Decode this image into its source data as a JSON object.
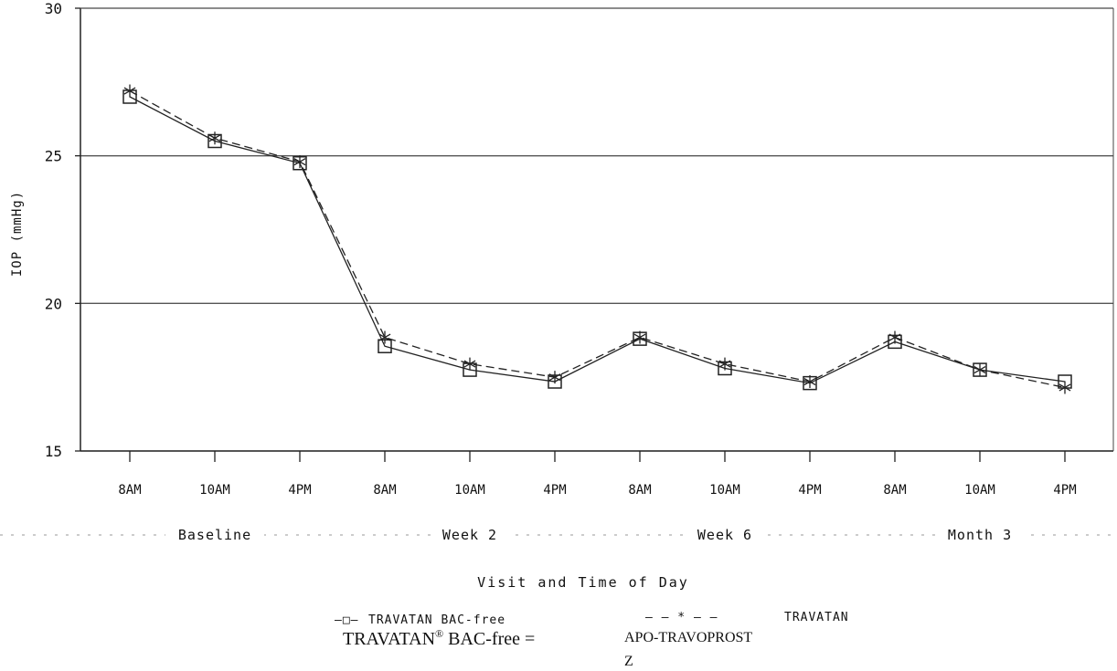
{
  "chart_data": {
    "type": "line",
    "title": "",
    "xlabel": "Visit and Time of Day",
    "ylabel": "IOP (mmHg)",
    "ylim": [
      15,
      30
    ],
    "yticks": [
      15,
      20,
      25,
      30
    ],
    "grid": "horizontal",
    "legend_position": "bottom",
    "categories": [
      "8AM",
      "10AM",
      "4PM",
      "8AM",
      "10AM",
      "4PM",
      "8AM",
      "10AM",
      "4PM",
      "8AM",
      "10AM",
      "4PM"
    ],
    "groups": [
      {
        "label": "Baseline",
        "start": 0,
        "end": 2
      },
      {
        "label": "Week 2",
        "start": 3,
        "end": 5
      },
      {
        "label": "Week 6",
        "start": 6,
        "end": 8
      },
      {
        "label": "Month 3",
        "start": 9,
        "end": 11
      }
    ],
    "series": [
      {
        "name": "TRAVATAN BAC-free",
        "marker": "square",
        "line": "solid",
        "values": [
          27.0,
          25.5,
          24.75,
          18.55,
          17.75,
          17.35,
          18.8,
          17.8,
          17.3,
          18.7,
          17.75,
          17.35
        ]
      },
      {
        "name": "TRAVATAN",
        "marker": "asterisk",
        "line": "dashed",
        "values": [
          27.2,
          25.6,
          24.8,
          18.85,
          17.95,
          17.5,
          18.85,
          17.95,
          17.35,
          18.85,
          17.75,
          17.15
        ]
      }
    ],
    "legend_entries": [
      {
        "symbol": "–□–",
        "label": "TRAVATAN BAC-free"
      },
      {
        "symbol": "— — * — —",
        "label": "TRAVATAN"
      }
    ],
    "footnote": {
      "lhs": "TRAVATAN",
      "sup": "®",
      "lhs_rest": " BAC-free =",
      "rhs_line1": "APO-TRAVOPROST",
      "rhs_line2": "Z"
    }
  }
}
